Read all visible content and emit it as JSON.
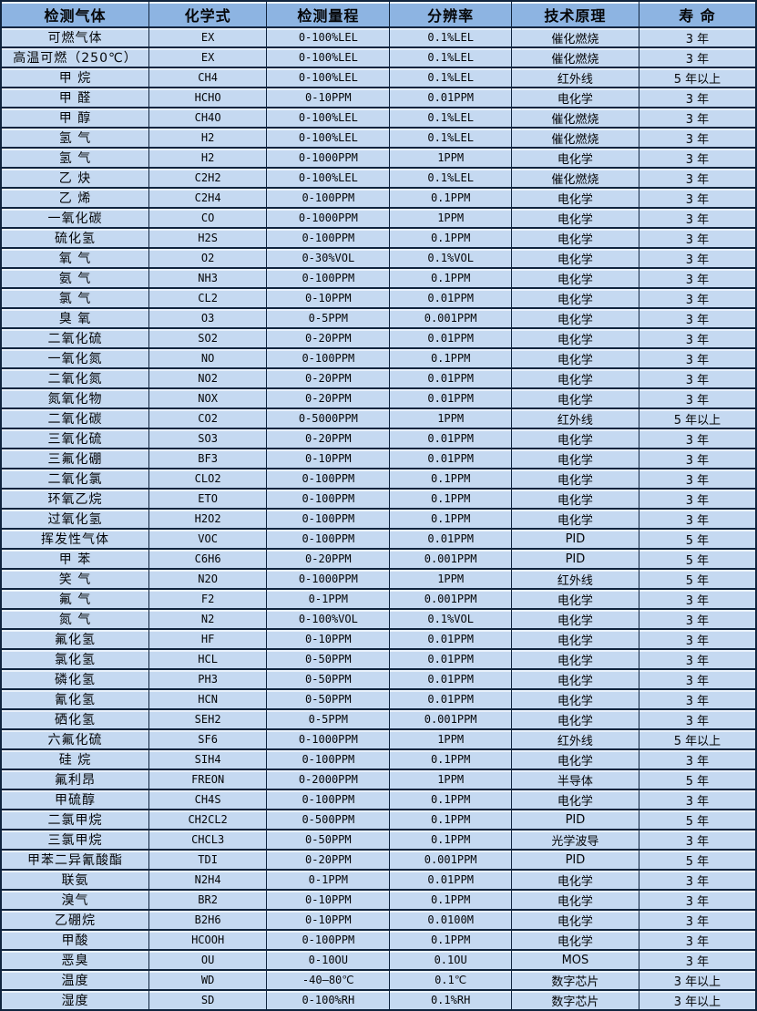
{
  "colors": {
    "header_bg": "#8db4e2",
    "row_bg": "#c5d9f1",
    "border": "#10243e",
    "highlight": "#e9f1fb",
    "text": "#050608"
  },
  "table": {
    "columns": [
      "检测气体",
      "化学式",
      "检测量程",
      "分辨率",
      "技术原理",
      "寿 命"
    ],
    "rows": [
      [
        "可燃气体",
        "EX",
        "0-100%LEL",
        "0.1%LEL",
        "催化燃烧",
        "3 年"
      ],
      [
        "高温可燃（250℃）",
        "EX",
        "0-100%LEL",
        "0.1%LEL",
        "催化燃烧",
        "3 年"
      ],
      [
        "甲 烷",
        "CH4",
        "0-100%LEL",
        "0.1%LEL",
        "红外线",
        "5 年以上"
      ],
      [
        "甲 醛",
        "HCHO",
        "0-10PPM",
        "0.01PPM",
        "电化学",
        "3 年"
      ],
      [
        "甲 醇",
        "CH4O",
        "0-100%LEL",
        "0.1%LEL",
        "催化燃烧",
        "3 年"
      ],
      [
        "氢 气",
        "H2",
        "0-100%LEL",
        "0.1%LEL",
        "催化燃烧",
        "3 年"
      ],
      [
        "氢 气",
        "H2",
        "0-1000PPM",
        "1PPM",
        "电化学",
        "3 年"
      ],
      [
        "乙 炔",
        "C2H2",
        "0-100%LEL",
        "0.1%LEL",
        "催化燃烧",
        "3 年"
      ],
      [
        "乙 烯",
        "C2H4",
        "0-100PPM",
        "0.1PPM",
        "电化学",
        "3 年"
      ],
      [
        "一氧化碳",
        "CO",
        "0-1000PPM",
        "1PPM",
        "电化学",
        "3 年"
      ],
      [
        "硫化氢",
        "H2S",
        "0-100PPM",
        "0.1PPM",
        "电化学",
        "3 年"
      ],
      [
        "氧 气",
        "O2",
        "0-30%VOL",
        "0.1%VOL",
        "电化学",
        "3 年"
      ],
      [
        "氨 气",
        "NH3",
        "0-100PPM",
        "0.1PPM",
        "电化学",
        "3 年"
      ],
      [
        "氯 气",
        "CL2",
        "0-10PPM",
        "0.01PPM",
        "电化学",
        "3 年"
      ],
      [
        "臭 氧",
        "O3",
        "0-5PPM",
        "0.001PPM",
        "电化学",
        "3 年"
      ],
      [
        "二氧化硫",
        "SO2",
        "0-20PPM",
        "0.01PPM",
        "电化学",
        "3 年"
      ],
      [
        "一氧化氮",
        "NO",
        "0-100PPM",
        "0.1PPM",
        "电化学",
        "3 年"
      ],
      [
        "二氧化氮",
        "NO2",
        "0-20PPM",
        "0.01PPM",
        "电化学",
        "3 年"
      ],
      [
        "氮氧化物",
        "NOX",
        "0-20PPM",
        "0.01PPM",
        "电化学",
        "3 年"
      ],
      [
        "二氧化碳",
        "CO2",
        "0-5000PPM",
        "1PPM",
        "红外线",
        "5 年以上"
      ],
      [
        "三氧化硫",
        "SO3",
        "0-20PPM",
        "0.01PPM",
        "电化学",
        "3 年"
      ],
      [
        "三氟化硼",
        "BF3",
        "0-10PPM",
        "0.01PPM",
        "电化学",
        "3 年"
      ],
      [
        "二氧化氯",
        "CLO2",
        "0-100PPM",
        "0.1PPM",
        "电化学",
        "3 年"
      ],
      [
        "环氧乙烷",
        "ETO",
        "0-100PPM",
        "0.1PPM",
        "电化学",
        "3 年"
      ],
      [
        "过氧化氢",
        "H2O2",
        "0-100PPM",
        "0.1PPM",
        "电化学",
        "3 年"
      ],
      [
        "挥发性气体",
        "VOC",
        "0-100PPM",
        "0.01PPM",
        "PID",
        "5 年"
      ],
      [
        "甲 苯",
        "C6H6",
        "0-20PPM",
        "0.001PPM",
        "PID",
        "5 年"
      ],
      [
        "笑 气",
        "N2O",
        "0-1000PPM",
        "1PPM",
        "红外线",
        "5 年"
      ],
      [
        "氟 气",
        "F2",
        "0-1PPM",
        "0.001PPM",
        "电化学",
        "3 年"
      ],
      [
        "氮 气",
        "N2",
        "0-100%VOL",
        "0.1%VOL",
        "电化学",
        "3 年"
      ],
      [
        "氟化氢",
        "HF",
        "0-10PPM",
        "0.01PPM",
        "电化学",
        "3 年"
      ],
      [
        "氯化氢",
        "HCL",
        "0-50PPM",
        "0.01PPM",
        "电化学",
        "3 年"
      ],
      [
        "磷化氢",
        "PH3",
        "0-50PPM",
        "0.01PPM",
        "电化学",
        "3 年"
      ],
      [
        "氰化氢",
        "HCN",
        "0-50PPM",
        "0.01PPM",
        "电化学",
        "3 年"
      ],
      [
        "硒化氢",
        "SEH2",
        "0-5PPM",
        "0.001PPM",
        "电化学",
        "3 年"
      ],
      [
        "六氟化硫",
        "SF6",
        "0-1000PPM",
        "1PPM",
        "红外线",
        "5 年以上"
      ],
      [
        "硅 烷",
        "SIH4",
        "0-100PPM",
        "0.1PPM",
        "电化学",
        "3 年"
      ],
      [
        "氟利昂",
        "FREON",
        "0-2000PPM",
        "1PPM",
        "半导体",
        "5 年"
      ],
      [
        "甲硫醇",
        "CH4S",
        "0-100PPM",
        "0.1PPM",
        "电化学",
        "3 年"
      ],
      [
        "二氯甲烷",
        "CH2CL2",
        "0-500PPM",
        "0.1PPM",
        "PID",
        "5 年"
      ],
      [
        "三氯甲烷",
        "CHCL3",
        "0-50PPM",
        "0.1PPM",
        "光学波导",
        "3 年"
      ],
      [
        "甲苯二异氰酸酯",
        "TDI",
        "0-20PPM",
        "0.001PPM",
        "PID",
        "5 年"
      ],
      [
        "联氨",
        "N2H4",
        "0-1PPM",
        "0.01PPM",
        "电化学",
        "3 年"
      ],
      [
        "溴气",
        "BR2",
        "0-10PPM",
        "0.1PPM",
        "电化学",
        "3 年"
      ],
      [
        "乙硼烷",
        "B2H6",
        "0-10PPM",
        "0.0100M",
        "电化学",
        "3 年"
      ],
      [
        "甲酸",
        "HCOOH",
        "0-100PPM",
        "0.1PPM",
        "电化学",
        "3 年"
      ],
      [
        "恶臭",
        "OU",
        "0-10OU",
        "0.1OU",
        "MOS",
        "3 年"
      ],
      [
        "温度",
        "WD",
        "-40—80℃",
        "0.1℃",
        "数字芯片",
        "3 年以上"
      ],
      [
        "湿度",
        "SD",
        "0-100%RH",
        "0.1%RH",
        "数字芯片",
        "3 年以上"
      ]
    ]
  }
}
